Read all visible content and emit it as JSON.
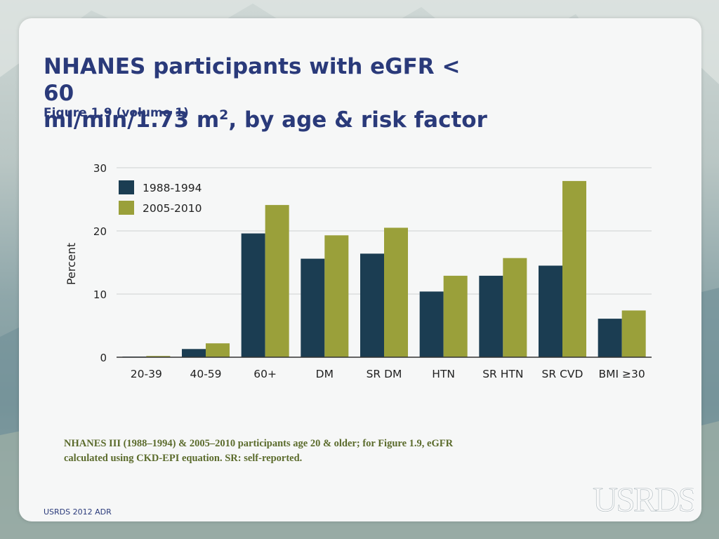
{
  "slide": {
    "title_line1": "NHANES participants with eGFR < 60",
    "title_line2_pre": "ml/min/1.73 m",
    "title_line2_sup": "2",
    "title_line2_post": ", by age & risk factor",
    "subtitle": "Figure 1.9 (volume 1)",
    "footnote_line1": "NHANES III (1988–1994) & 2005–2010 participants age 20 & older; for Figure 1.9, eGFR",
    "footnote_line2": "calculated using CKD-EPI equation. SR: self-reported.",
    "footer": "USRDS 2012 ADR",
    "logo_text": "USRDS"
  },
  "colors": {
    "series1": "#1b3d52",
    "series2": "#9aa03a",
    "title": "#2a3a7a",
    "footnote": "#5b6b2c"
  },
  "chart_data": {
    "type": "bar",
    "categories": [
      "20-39",
      "40-59",
      "60+",
      "DM",
      "SR DM",
      "HTN",
      "SR HTN",
      "SR CVD",
      "BMI ≥30"
    ],
    "series": [
      {
        "name": "1988-1994",
        "values": [
          0.1,
          1.3,
          19.6,
          15.6,
          16.4,
          10.4,
          12.9,
          14.5,
          6.1
        ]
      },
      {
        "name": "2005-2010",
        "values": [
          0.2,
          2.2,
          24.1,
          19.3,
          20.5,
          12.9,
          15.7,
          27.9,
          7.4
        ]
      }
    ],
    "title": "",
    "xlabel": "",
    "ylabel": "Percent",
    "ylim": [
      0,
      30
    ],
    "yticks": [
      0,
      10,
      20,
      30
    ],
    "grid": true,
    "legend_position": "top-left"
  }
}
